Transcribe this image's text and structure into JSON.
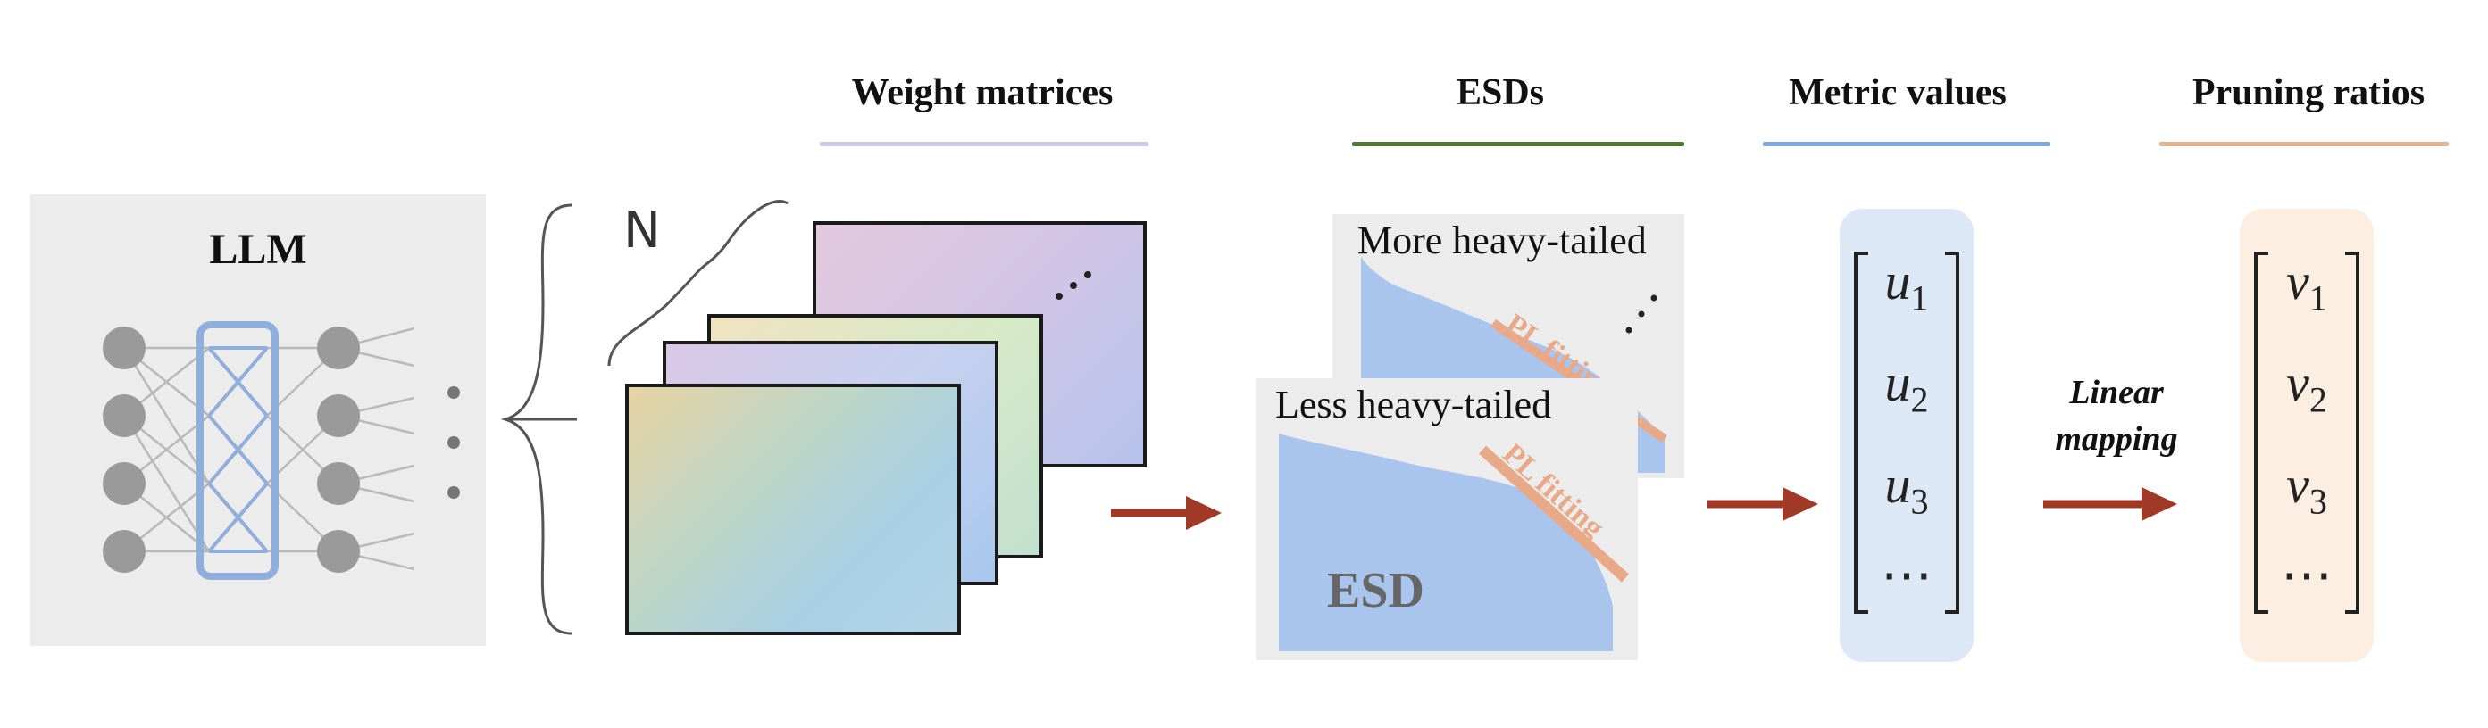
{
  "headers": {
    "weight_matrices": "Weight matrices",
    "esds": "ESDs",
    "metric_values": "Metric values",
    "pruning_ratios": "Pruning ratios"
  },
  "llm": {
    "title": "LLM"
  },
  "stack": {
    "count_label": "N"
  },
  "esd": {
    "more_heavy_tailed": "More heavy-tailed",
    "less_heavy_tailed": "Less heavy-tailed",
    "pl_fitting": "PL fitting",
    "esd_label": "ESD"
  },
  "metric_vector": {
    "var": "u",
    "subs": [
      "1",
      "2",
      "3"
    ],
    "ellipsis": "⋯"
  },
  "ratio_vector": {
    "var": "v",
    "subs": [
      "1",
      "2",
      "3"
    ],
    "ellipsis": "⋯"
  },
  "mapping": {
    "line1": "Linear",
    "line2": "mapping"
  },
  "colors": {
    "weight_underline": "#cdc6e4",
    "esd_underline": "#4f7a34",
    "metric_underline": "#7fa9d8",
    "ratio_underline": "#e0b48e",
    "arrow": "#a03a27",
    "histogram": "#a9c5ee",
    "pl_line": "#e8a988",
    "metric_bg": "#dce8f5",
    "ratio_bg": "#fcefe1"
  }
}
